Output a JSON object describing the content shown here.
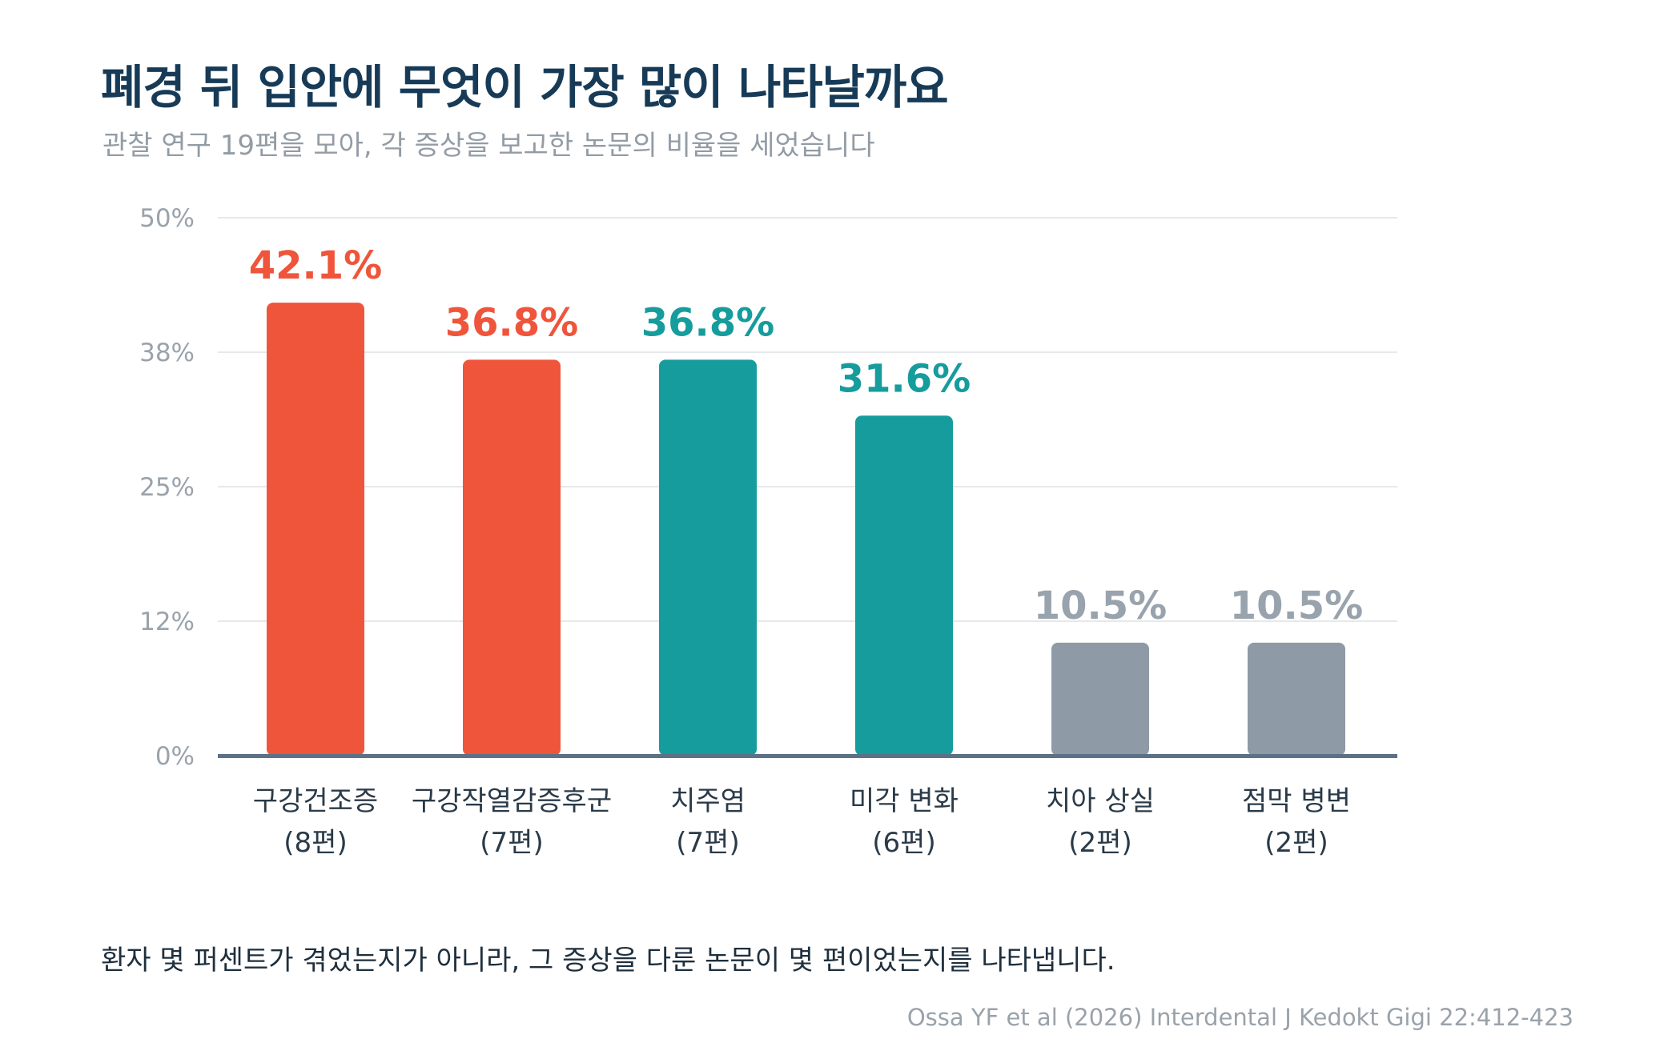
{
  "title": "폐경 뒤 입안에 무엇이 가장 많이 나타날까요",
  "subtitle": "관찰 연구 19편을 모아, 각 증상을 보고한 논문의 비율을 세었습니다",
  "footnote": "환자 몇 퍼센트가 겪었는지가 아니라, 그 증상을 다룬 논문이 몇 편이었는지를 나타냅니다.",
  "source": "Ossa YF et al (2026) Interdental J Kedokt Gigi 22:412-423",
  "chart_data": {
    "type": "bar",
    "categories": [
      "구강건조증",
      "구강작열감증후군",
      "치주염",
      "미각 변화",
      "치아 상실",
      "점막 병변"
    ],
    "category_counts": [
      "(8편)",
      "(7편)",
      "(7편)",
      "(6편)",
      "(2편)",
      "(2편)"
    ],
    "values": [
      42.1,
      36.8,
      36.8,
      31.6,
      10.5,
      10.5
    ],
    "value_labels": [
      "42.1%",
      "36.8%",
      "36.8%",
      "31.6%",
      "10.5%",
      "10.5%"
    ],
    "bar_colors": [
      "#ef553b",
      "#ef553b",
      "#169c9c",
      "#169c9c",
      "#8e9aa5",
      "#8e9aa5"
    ],
    "label_colors": [
      "#ef553b",
      "#ef553b",
      "#169c9c",
      "#169c9c",
      "#98a3ad",
      "#98a3ad"
    ],
    "yticks": [
      0,
      12.5,
      25,
      37.5,
      50
    ],
    "ytick_labels": [
      "0%",
      "12%",
      "25%",
      "38%",
      "50%"
    ],
    "ylim": [
      0,
      50
    ],
    "grid": true,
    "grid_color": "#e6e9ec",
    "axis_color": "#5c7186"
  }
}
